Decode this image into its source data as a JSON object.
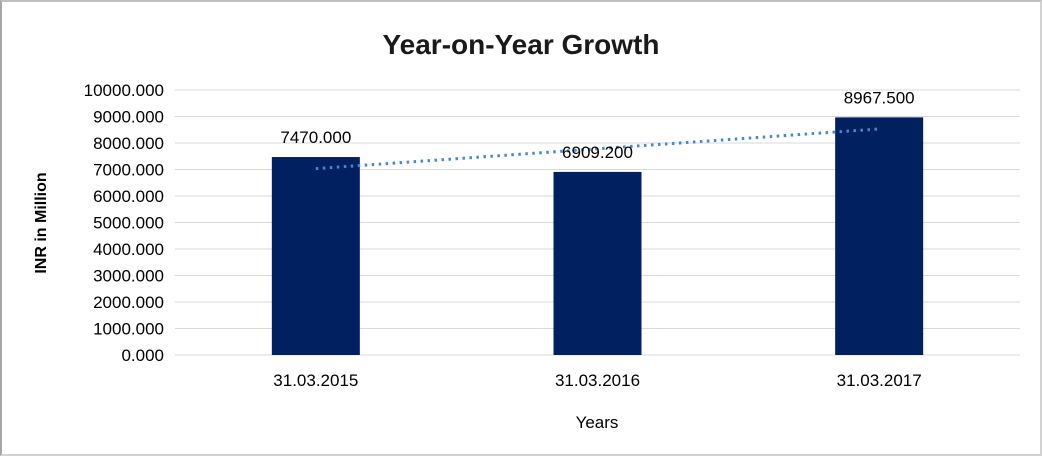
{
  "chart_data": {
    "type": "bar",
    "title": "Year-on-Year Growth",
    "xlabel": "Years",
    "ylabel": "INR in Million",
    "categories": [
      "31.03.2015",
      "31.03.2016",
      "31.03.2017"
    ],
    "values": [
      7470.0,
      6909.2,
      8967.5
    ],
    "data_labels": [
      "7470.000",
      "6909.200",
      "8967.500"
    ],
    "ylim": [
      0,
      10000
    ],
    "ytick_step": 1000,
    "ytick_labels": [
      "0.000",
      "1000.000",
      "2000.000",
      "3000.000",
      "4000.000",
      "5000.000",
      "6000.000",
      "7000.000",
      "8000.000",
      "9000.000",
      "10000.000"
    ],
    "grid": true,
    "legend": false,
    "colors": {
      "bar": "#002060",
      "gridline": "#d9d9d9",
      "trendline": "#4a86c8",
      "text": "#000000"
    },
    "trendline": {
      "type": "linear",
      "style": "dotted"
    }
  }
}
